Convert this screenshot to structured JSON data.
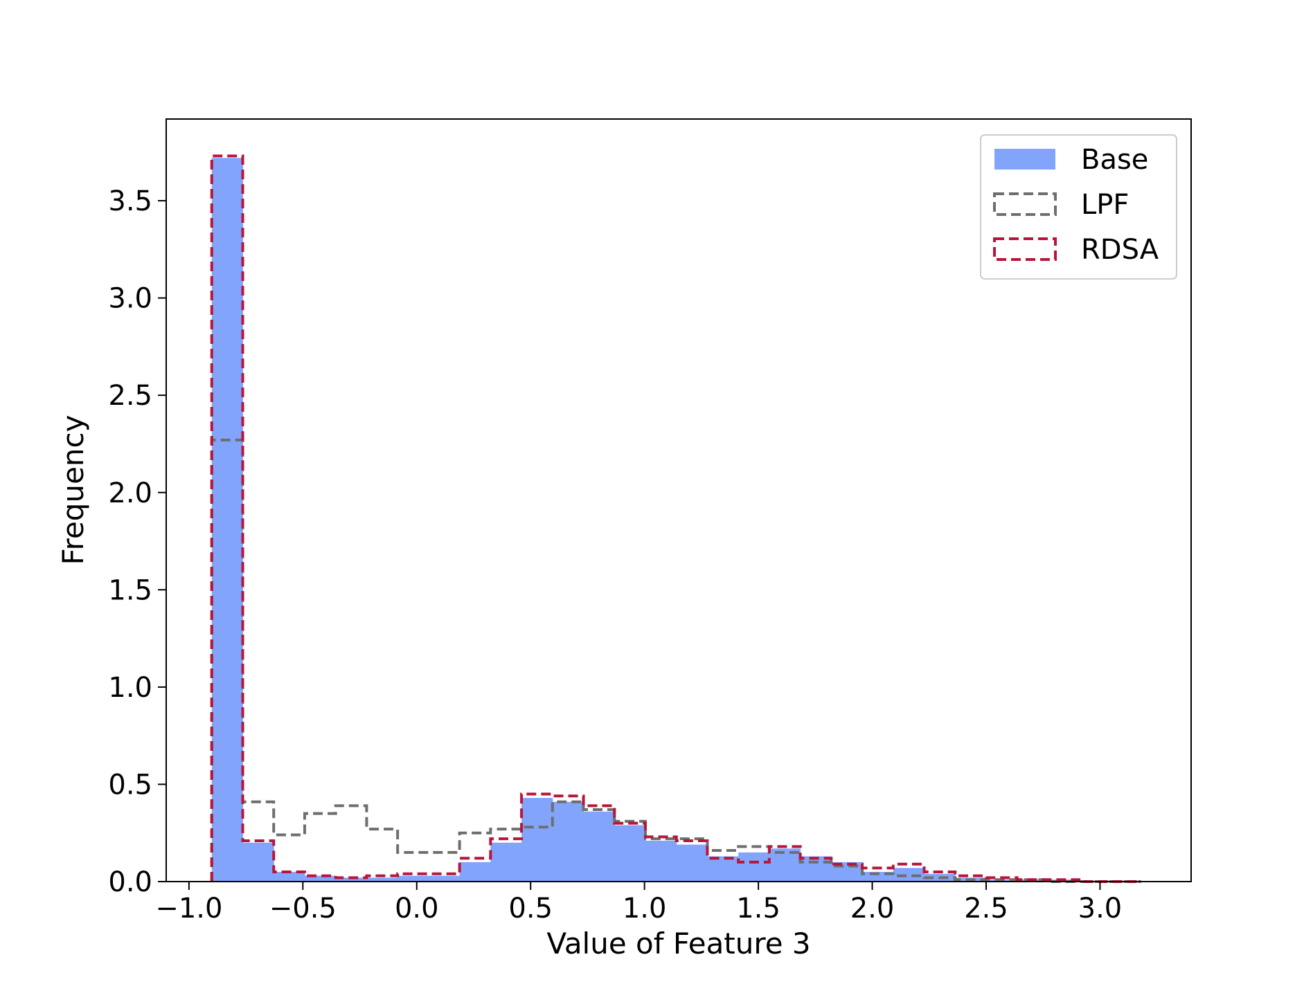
{
  "chart_data": {
    "type": "histogram",
    "xlabel": "Value of Feature 3",
    "ylabel": "Frequency",
    "xlim": [
      -1.1,
      3.4
    ],
    "ylim": [
      0,
      3.92
    ],
    "xticks": [
      -1.0,
      -0.5,
      0.0,
      0.5,
      1.0,
      1.5,
      2.0,
      2.5,
      3.0
    ],
    "xtick_labels": [
      "−1.0",
      "−0.5",
      "0.0",
      "0.5",
      "1.0",
      "1.5",
      "2.0",
      "2.5",
      "3.0"
    ],
    "yticks": [
      0.0,
      0.5,
      1.0,
      1.5,
      2.0,
      2.5,
      3.0,
      3.5
    ],
    "ytick_labels": [
      "0.0",
      "0.5",
      "1.0",
      "1.5",
      "2.0",
      "2.5",
      "3.0",
      "3.5"
    ],
    "bin_edges": [
      -0.9,
      -0.764,
      -0.628,
      -0.492,
      -0.356,
      -0.22,
      -0.084,
      0.052,
      0.188,
      0.324,
      0.46,
      0.596,
      0.732,
      0.868,
      1.004,
      1.14,
      1.276,
      1.412,
      1.548,
      1.684,
      1.82,
      1.956,
      2.092,
      2.228,
      2.364,
      2.5,
      2.636,
      2.772,
      2.908,
      3.044,
      3.18
    ],
    "legend_position": "top-right",
    "grid": false,
    "series": [
      {
        "name": "Base",
        "style": "filled",
        "color": "#82a5fb",
        "values": [
          3.72,
          0.2,
          0.05,
          0.03,
          0.02,
          0.02,
          0.03,
          0.03,
          0.1,
          0.2,
          0.43,
          0.41,
          0.36,
          0.29,
          0.21,
          0.19,
          0.13,
          0.15,
          0.17,
          0.13,
          0.1,
          0.05,
          0.07,
          0.04,
          0.02,
          0.01,
          0.01,
          0.01,
          0.0,
          0.0
        ]
      },
      {
        "name": "LPF",
        "style": "dashed-step",
        "color": "#6e6e6e",
        "values": [
          2.27,
          0.41,
          0.24,
          0.35,
          0.39,
          0.27,
          0.15,
          0.15,
          0.25,
          0.27,
          0.28,
          0.41,
          0.37,
          0.31,
          0.22,
          0.22,
          0.16,
          0.18,
          0.15,
          0.1,
          0.08,
          0.04,
          0.03,
          0.02,
          0.01,
          0.01,
          0.01,
          0.0,
          0.0,
          0.0
        ]
      },
      {
        "name": "RDSA",
        "style": "dashed-step",
        "color": "#b8153a",
        "values": [
          3.73,
          0.21,
          0.05,
          0.03,
          0.02,
          0.03,
          0.04,
          0.04,
          0.12,
          0.22,
          0.45,
          0.44,
          0.39,
          0.3,
          0.23,
          0.21,
          0.12,
          0.1,
          0.18,
          0.12,
          0.09,
          0.07,
          0.09,
          0.05,
          0.03,
          0.02,
          0.01,
          0.01,
          0.0,
          0.0
        ]
      }
    ]
  }
}
